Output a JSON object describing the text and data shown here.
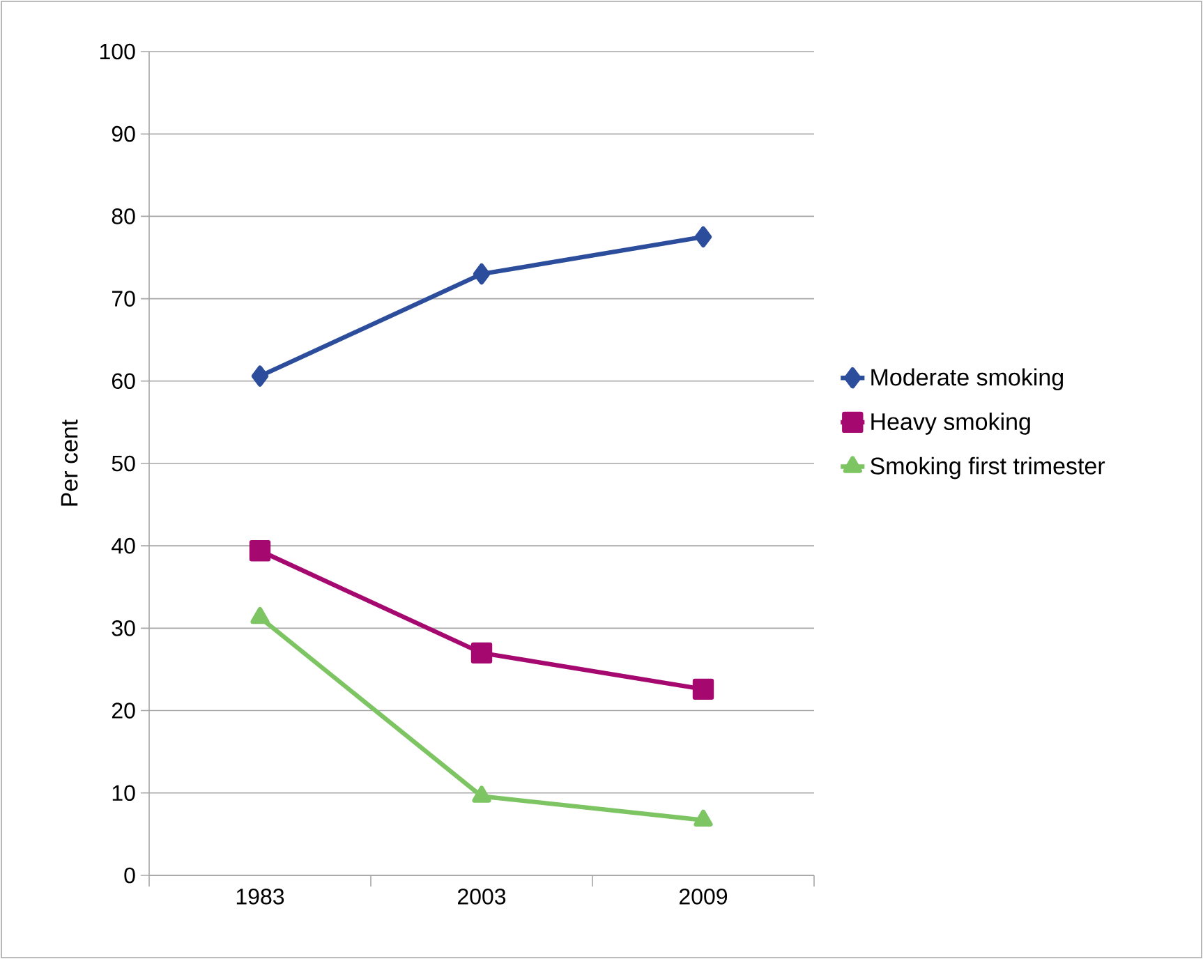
{
  "chart_data": {
    "type": "line",
    "ylabel": "Per cent",
    "categories": [
      "1983",
      "2003",
      "2009"
    ],
    "series": [
      {
        "name": "Moderate smoking",
        "color": "#2c4d9c",
        "marker": "diamond",
        "values": [
          60.6,
          73.0,
          77.5
        ]
      },
      {
        "name": "Heavy smoking",
        "color": "#a5096f",
        "marker": "square",
        "values": [
          39.4,
          27.0,
          22.6
        ]
      },
      {
        "name": "Smoking first trimester",
        "color": "#7dc462",
        "marker": "triangle",
        "values": [
          31.3,
          9.6,
          6.7
        ]
      }
    ],
    "ylim": [
      0,
      100
    ],
    "yticks": [
      0,
      10,
      20,
      30,
      40,
      50,
      60,
      70,
      80,
      90,
      100
    ],
    "grid": "y",
    "legend": "right"
  }
}
